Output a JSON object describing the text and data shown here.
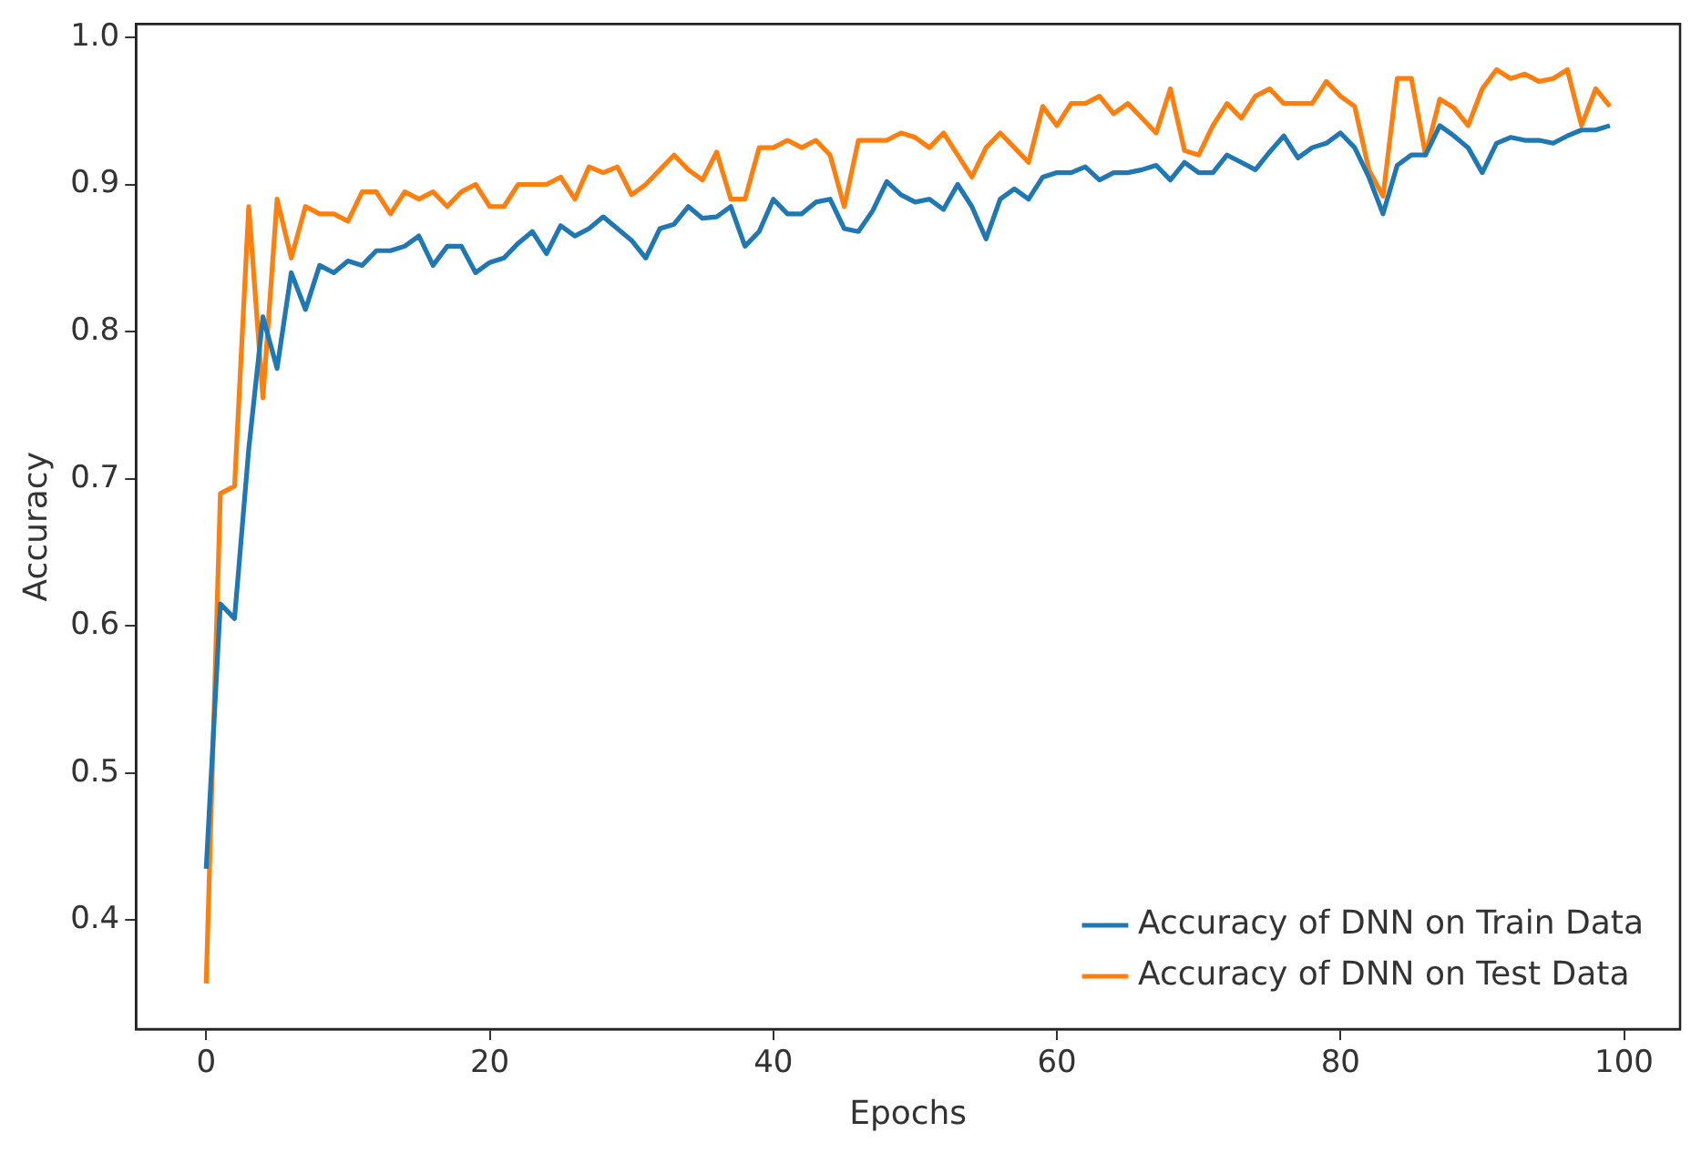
{
  "chart_data": {
    "type": "line",
    "xlabel": "Epochs",
    "ylabel": "Accuracy",
    "x": [
      0,
      1,
      2,
      3,
      4,
      5,
      6,
      7,
      8,
      9,
      10,
      11,
      12,
      13,
      14,
      15,
      16,
      17,
      18,
      19,
      20,
      21,
      22,
      23,
      24,
      25,
      26,
      27,
      28,
      29,
      30,
      31,
      32,
      33,
      34,
      35,
      36,
      37,
      38,
      39,
      40,
      41,
      42,
      43,
      44,
      45,
      46,
      47,
      48,
      49,
      50,
      51,
      52,
      53,
      54,
      55,
      56,
      57,
      58,
      59,
      60,
      61,
      62,
      63,
      64,
      65,
      66,
      67,
      68,
      69,
      70,
      71,
      72,
      73,
      74,
      75,
      76,
      77,
      78,
      79,
      80,
      81,
      82,
      83,
      84,
      85,
      86,
      87,
      88,
      89,
      90,
      91,
      92,
      93,
      94,
      95,
      96,
      97,
      98,
      99
    ],
    "series": [
      {
        "name": "Accuracy of DNN on Train Data",
        "color": "#1f77b4",
        "values": [
          0.435,
          0.615,
          0.605,
          0.72,
          0.81,
          0.775,
          0.84,
          0.815,
          0.845,
          0.84,
          0.848,
          0.845,
          0.855,
          0.855,
          0.858,
          0.865,
          0.845,
          0.858,
          0.858,
          0.84,
          0.847,
          0.85,
          0.86,
          0.868,
          0.853,
          0.872,
          0.865,
          0.87,
          0.878,
          0.87,
          0.862,
          0.85,
          0.87,
          0.873,
          0.885,
          0.877,
          0.878,
          0.885,
          0.858,
          0.868,
          0.89,
          0.88,
          0.88,
          0.888,
          0.89,
          0.87,
          0.868,
          0.882,
          0.902,
          0.893,
          0.888,
          0.89,
          0.883,
          0.9,
          0.885,
          0.863,
          0.89,
          0.897,
          0.89,
          0.905,
          0.908,
          0.908,
          0.912,
          0.903,
          0.908,
          0.908,
          0.91,
          0.913,
          0.903,
          0.915,
          0.908,
          0.908,
          0.92,
          0.915,
          0.91,
          0.922,
          0.933,
          0.918,
          0.925,
          0.928,
          0.935,
          0.925,
          0.905,
          0.88,
          0.913,
          0.92,
          0.92,
          0.94,
          0.933,
          0.925,
          0.908,
          0.928,
          0.932,
          0.93,
          0.93,
          0.928,
          0.933,
          0.937,
          0.937,
          0.94
        ]
      },
      {
        "name": "Accuracy of DNN on Test Data",
        "color": "#ff7f0e",
        "values": [
          0.357,
          0.69,
          0.695,
          0.885,
          0.755,
          0.89,
          0.85,
          0.885,
          0.88,
          0.88,
          0.875,
          0.895,
          0.895,
          0.88,
          0.895,
          0.89,
          0.895,
          0.885,
          0.895,
          0.9,
          0.885,
          0.885,
          0.9,
          0.9,
          0.9,
          0.905,
          0.89,
          0.912,
          0.908,
          0.912,
          0.893,
          0.9,
          0.91,
          0.92,
          0.91,
          0.903,
          0.922,
          0.89,
          0.89,
          0.925,
          0.925,
          0.93,
          0.925,
          0.93,
          0.92,
          0.885,
          0.93,
          0.93,
          0.93,
          0.935,
          0.932,
          0.925,
          0.935,
          0.92,
          0.905,
          0.925,
          0.935,
          0.925,
          0.915,
          0.953,
          0.94,
          0.955,
          0.955,
          0.96,
          0.948,
          0.955,
          0.945,
          0.935,
          0.965,
          0.923,
          0.92,
          0.94,
          0.955,
          0.945,
          0.96,
          0.965,
          0.955,
          0.955,
          0.955,
          0.97,
          0.96,
          0.953,
          0.91,
          0.892,
          0.972,
          0.972,
          0.92,
          0.958,
          0.952,
          0.94,
          0.965,
          0.978,
          0.972,
          0.975,
          0.97,
          0.972,
          0.978,
          0.94,
          0.965,
          0.953
        ]
      }
    ],
    "xlim": [
      -4.95,
      103.95
    ],
    "xticks": [
      0,
      20,
      40,
      60,
      80,
      100
    ],
    "ylim": [
      0.326,
      1.009
    ],
    "yticks": [
      {
        "value": 0.4,
        "label": "0.4"
      },
      {
        "value": 0.5,
        "label": "0.5"
      },
      {
        "value": 0.6,
        "label": "0.6"
      },
      {
        "value": 0.7,
        "label": "0.7"
      },
      {
        "value": 0.8,
        "label": "0.8"
      },
      {
        "value": 0.9,
        "label": "0.9"
      },
      {
        "value": 1.0,
        "label": "1.0"
      }
    ],
    "grid": false,
    "legend": "bottom right",
    "marker": "none",
    "line_style": "solid"
  }
}
